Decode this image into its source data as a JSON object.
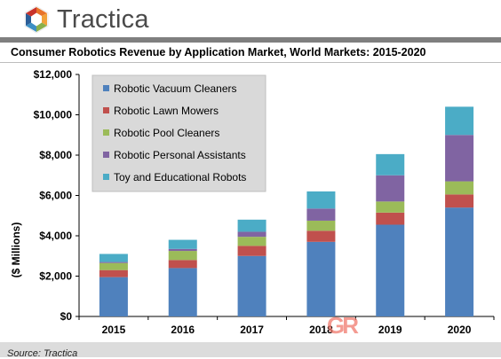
{
  "brand": {
    "name": "Tractica"
  },
  "source_note": "Source: Tractica",
  "colors": {
    "vacuum": "#4f81bd",
    "mowers": "#c0504d",
    "pool": "#9bbb59",
    "assistants": "#8064a2",
    "toys": "#4bacc6",
    "legend_bg": "#d9d9d9"
  },
  "watermark_text": "GR",
  "chart_data": {
    "type": "bar",
    "stacked": true,
    "title": "Consumer Robotics Revenue by Application Market, World Markets: 2015-2020",
    "xlabel": "",
    "ylabel": "($ Millions)",
    "categories": [
      "2015",
      "2016",
      "2017",
      "2018",
      "2019",
      "2020"
    ],
    "ylim": [
      0,
      12000
    ],
    "yticks": [
      0,
      2000,
      4000,
      6000,
      8000,
      10000,
      12000
    ],
    "ytick_labels": [
      "$0",
      "$2,000",
      "$4,000",
      "$6,000",
      "$8,000",
      "$10,000",
      "$12,000"
    ],
    "grid": false,
    "legend_position": "top-left",
    "series": [
      {
        "name": "Robotic Vacuum Cleaners",
        "values": [
          1950,
          2400,
          3000,
          3700,
          4550,
          5400
        ]
      },
      {
        "name": "Robotic Lawn Mowers",
        "values": [
          350,
          400,
          500,
          550,
          600,
          650
        ]
      },
      {
        "name": "Robotic Pool Cleaners",
        "values": [
          350,
          450,
          450,
          500,
          550,
          650
        ]
      },
      {
        "name": "Robotic Personal Assistants",
        "values": [
          50,
          100,
          250,
          600,
          1300,
          2300
        ]
      },
      {
        "name": "Toy and Educational Robots",
        "values": [
          400,
          450,
          600,
          850,
          1050,
          1400
        ]
      }
    ]
  }
}
